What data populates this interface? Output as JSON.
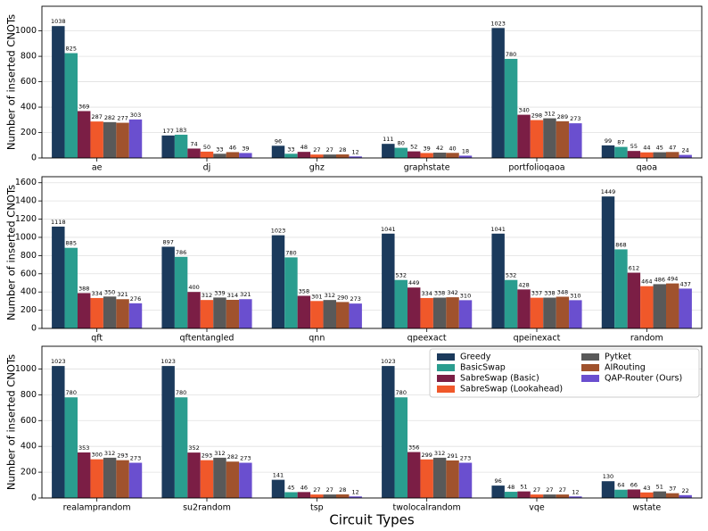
{
  "chart_data": [
    {
      "type": "bar",
      "y_label": "Number of inserted CNOTs",
      "categories": [
        "ae",
        "dj",
        "ghz",
        "graphstate",
        "portfolioqaoa",
        "qaoa"
      ],
      "series": [
        {
          "color": "#1b3a5c",
          "values": [
            1038,
            177,
            96,
            111,
            1023,
            99
          ]
        },
        {
          "color": "#2a9d8f",
          "values": [
            825,
            183,
            33,
            80,
            780,
            87
          ]
        },
        {
          "color": "#7b1e45",
          "values": [
            369,
            74,
            48,
            52,
            340,
            55
          ]
        },
        {
          "color": "#f0582a",
          "values": [
            287,
            50,
            27,
            39,
            298,
            44
          ]
        },
        {
          "color": "#595959",
          "values": [
            282,
            33,
            27,
            42,
            312,
            45
          ]
        },
        {
          "color": "#a0522d",
          "values": [
            277,
            46,
            28,
            40,
            289,
            47
          ]
        },
        {
          "color": "#6a4fcf",
          "values": [
            303,
            39,
            12,
            18,
            273,
            24
          ]
        }
      ],
      "ylim": [
        0,
        1194
      ],
      "yticks": [
        0,
        200,
        400,
        600,
        800,
        1000
      ],
      "grid": true
    },
    {
      "type": "bar",
      "y_label": "Number of inserted CNOTs",
      "categories": [
        "qft",
        "qftentangled",
        "qnn",
        "qpeexact",
        "qpeinexact",
        "random"
      ],
      "series": [
        {
          "color": "#1b3a5c",
          "values": [
            1118,
            897,
            1023,
            1041,
            1041,
            1449
          ]
        },
        {
          "color": "#2a9d8f",
          "values": [
            885,
            786,
            780,
            532,
            532,
            868
          ]
        },
        {
          "color": "#7b1e45",
          "values": [
            388,
            400,
            358,
            449,
            428,
            612
          ]
        },
        {
          "color": "#f0582a",
          "values": [
            334,
            312,
            301,
            334,
            337,
            464
          ]
        },
        {
          "color": "#595959",
          "values": [
            350,
            339,
            312,
            338,
            338,
            486
          ]
        },
        {
          "color": "#a0522d",
          "values": [
            321,
            314,
            290,
            342,
            348,
            494
          ]
        },
        {
          "color": "#6a4fcf",
          "values": [
            276,
            321,
            273,
            310,
            310,
            437
          ]
        }
      ],
      "ylim": [
        0,
        1666
      ],
      "yticks": [
        0,
        200,
        400,
        600,
        800,
        1000,
        1200,
        1400,
        1600
      ],
      "grid": true
    },
    {
      "type": "bar",
      "y_label": "Number of inserted CNOTs",
      "x_label": "Circuit Types",
      "categories": [
        "realamprandom",
        "su2random",
        "tsp",
        "twolocalrandom",
        "vqe",
        "wstate"
      ],
      "series": [
        {
          "name": "Greedy",
          "color": "#1b3a5c",
          "values": [
            1023,
            1023,
            141,
            1023,
            96,
            130
          ]
        },
        {
          "name": "BasicSwap",
          "color": "#2a9d8f",
          "values": [
            780,
            780,
            45,
            780,
            48,
            64
          ]
        },
        {
          "name": "SabreSwap (Basic)",
          "color": "#7b1e45",
          "values": [
            353,
            352,
            46,
            356,
            51,
            66
          ]
        },
        {
          "name": "SabreSwap (Lookahead)",
          "color": "#f0582a",
          "values": [
            300,
            293,
            27,
            299,
            27,
            43
          ]
        },
        {
          "name": "Pytket",
          "color": "#595959",
          "values": [
            312,
            312,
            27,
            312,
            27,
            51
          ]
        },
        {
          "name": "AIRouting",
          "color": "#a0522d",
          "values": [
            293,
            282,
            28,
            291,
            27,
            37
          ]
        },
        {
          "name": "QAP-Router (Ours)",
          "color": "#6a4fcf",
          "values": [
            273,
            273,
            12,
            273,
            12,
            22
          ]
        }
      ],
      "ylim": [
        0,
        1176
      ],
      "yticks": [
        0,
        200,
        400,
        600,
        800,
        1000
      ],
      "grid": true,
      "legend": "upper right"
    }
  ]
}
